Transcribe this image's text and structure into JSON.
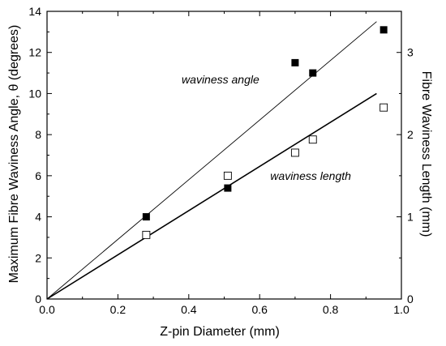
{
  "chart_data": {
    "type": "scatter",
    "xlabel": "Z-pin Diameter (mm)",
    "ylabel": "Maximum Fibre Waviness Angle, θ (degrees)",
    "y2label": "Fibre Waviness Length (mm)",
    "xlim": [
      0.0,
      1.0
    ],
    "ylim": [
      0,
      14
    ],
    "y2lim": [
      0,
      3.5
    ],
    "xticks": [
      "0.0",
      "0.2",
      "0.4",
      "0.6",
      "0.8",
      "1.0"
    ],
    "yticks": [
      "0",
      "2",
      "4",
      "6",
      "8",
      "10",
      "12",
      "14"
    ],
    "y2ticks": [
      "0",
      "1",
      "2",
      "3"
    ],
    "series": [
      {
        "axis": "left",
        "marker": "filled-square",
        "points": [
          {
            "x": 0.28,
            "y": 4.0
          },
          {
            "x": 0.51,
            "y": 5.4
          },
          {
            "x": 0.7,
            "y": 11.5
          },
          {
            "x": 0.75,
            "y": 11.0
          },
          {
            "x": 0.95,
            "y": 13.1
          }
        ],
        "fit": [
          {
            "x": 0.0,
            "y": 0.0
          },
          {
            "x": 0.93,
            "y": 13.5
          }
        ]
      },
      {
        "axis": "right",
        "marker": "open-square",
        "points": [
          {
            "x": 0.28,
            "y": 0.78
          },
          {
            "x": 0.51,
            "y": 1.5
          },
          {
            "x": 0.7,
            "y": 1.78
          },
          {
            "x": 0.75,
            "y": 1.94
          },
          {
            "x": 0.95,
            "y": 2.33
          }
        ],
        "fit": [
          {
            "x": 0.0,
            "y": 0.0
          },
          {
            "x": 0.93,
            "y": 2.5
          }
        ]
      }
    ],
    "annotations": [
      {
        "text": "waviness angle",
        "x": 0.38,
        "y": 10.5
      },
      {
        "text": "waviness length",
        "x": 0.63,
        "y": 5.8
      }
    ],
    "grid": false,
    "legend": "none"
  }
}
